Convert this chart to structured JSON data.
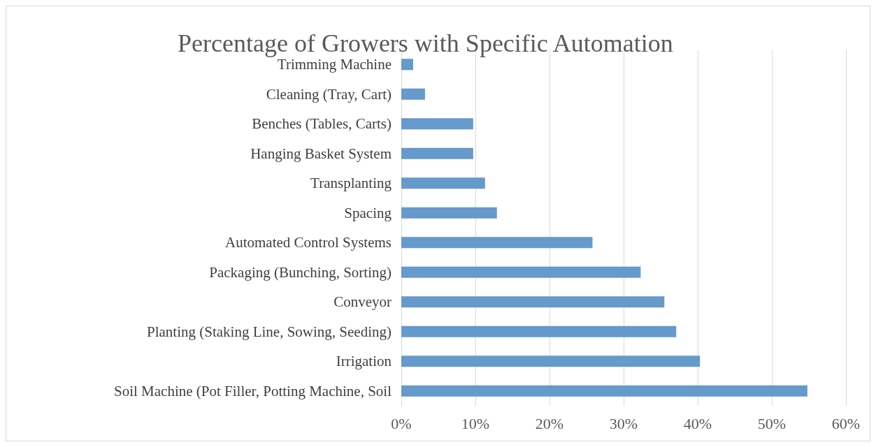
{
  "chart_data": {
    "type": "bar",
    "orientation": "horizontal",
    "title": "Percentage of Growers with Specific Automation",
    "categories": [
      "Trimming Machine",
      "Cleaning (Tray, Cart)",
      "Benches (Tables, Carts)",
      "Hanging Basket System",
      "Transplanting",
      "Spacing",
      "Automated Control Systems",
      "Packaging (Bunching, Sorting)",
      "Conveyor",
      "Planting (Staking Line, Sowing, Seeding)",
      "Irrigation",
      "Soil Machine (Pot Filler, Potting Machine, Soil"
    ],
    "values": [
      1.6,
      3.2,
      9.7,
      9.7,
      11.3,
      12.9,
      25.8,
      32.3,
      35.5,
      37.1,
      40.3,
      54.8
    ],
    "color": "#6699cc",
    "xlim": [
      0,
      60
    ],
    "xticks": [
      {
        "value": 0,
        "label": "0%"
      },
      {
        "value": 10,
        "label": "10%"
      },
      {
        "value": 20,
        "label": "20%"
      },
      {
        "value": 30,
        "label": "30%"
      },
      {
        "value": 40,
        "label": "40%"
      },
      {
        "value": 50,
        "label": "50%"
      },
      {
        "value": 60,
        "label": "60%"
      }
    ],
    "grid": "x"
  }
}
